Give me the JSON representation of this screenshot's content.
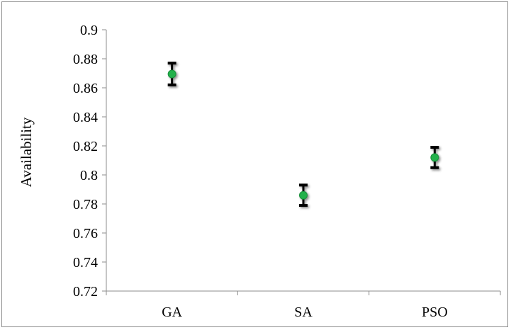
{
  "chart_data": {
    "type": "scatter",
    "title": "",
    "xlabel": "",
    "ylabel": "Availability",
    "categories": [
      "GA",
      "SA",
      "PSO"
    ],
    "values": [
      0.8695,
      0.786,
      0.812
    ],
    "error": [
      {
        "low": 0.862,
        "high": 0.877
      },
      {
        "low": 0.779,
        "high": 0.793
      },
      {
        "low": 0.805,
        "high": 0.819
      }
    ],
    "ylim": [
      0.72,
      0.9
    ],
    "yticks": [
      "0.72",
      "0.74",
      "0.76",
      "0.78",
      "0.8",
      "0.82",
      "0.84",
      "0.86",
      "0.88",
      "0.9"
    ],
    "grid": false,
    "legend": "none",
    "marker_color": "#22b14c",
    "errorbar_color": "#000000",
    "axis_color": "#8c8c8c"
  }
}
